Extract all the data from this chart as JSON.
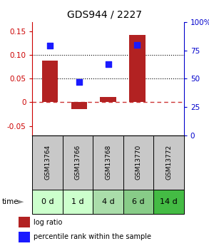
{
  "title": "GDS944 / 2227",
  "categories": [
    "GSM13764",
    "GSM13766",
    "GSM13768",
    "GSM13770",
    "GSM13772"
  ],
  "time_labels": [
    "0 d",
    "1 d",
    "4 d",
    "6 d",
    "14 d"
  ],
  "log_ratio": [
    0.088,
    -0.015,
    0.012,
    0.143,
    null
  ],
  "percentile_rank": [
    0.79,
    0.47,
    0.63,
    0.8,
    null
  ],
  "ylim_left": [
    -0.07,
    0.17
  ],
  "ylim_right": [
    0,
    1.0
  ],
  "yticks_left": [
    -0.05,
    0.0,
    0.05,
    0.1,
    0.15
  ],
  "ytick_labels_left": [
    "-0.05",
    "0",
    "0.05",
    "0.10",
    "0.15"
  ],
  "yticks_right": [
    0,
    0.25,
    0.5,
    0.75,
    1.0
  ],
  "ytick_labels_right": [
    "0",
    "25",
    "50",
    "75",
    "100%"
  ],
  "bar_color": "#b22222",
  "dot_color": "#1a1aff",
  "hline_zero_color": "#cc3333",
  "hline_dotted_color": "#000000",
  "hline_dotted_values": [
    0.05,
    0.1
  ],
  "bar_width": 0.55,
  "gsm_bg_color": "#c8c8c8",
  "time_bg_colors": [
    "#ccffcc",
    "#ccffcc",
    "#aaddaa",
    "#88cc88",
    "#44bb44"
  ],
  "left_axis_color": "#cc0000",
  "right_axis_color": "#0000cc",
  "title_fontsize": 10,
  "tick_fontsize": 7.5,
  "legend_fontsize": 7,
  "dot_size": 40,
  "gsm_fontsize": 6.5,
  "time_fontsize": 8
}
